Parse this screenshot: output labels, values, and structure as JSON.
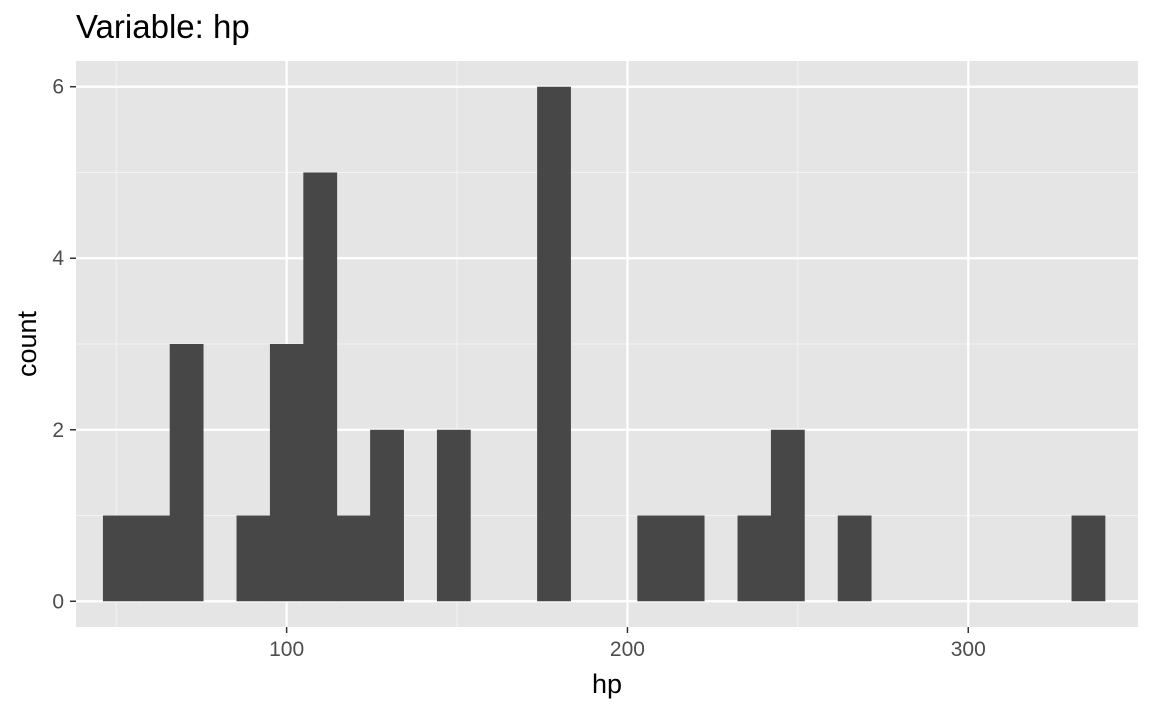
{
  "chart_data": {
    "type": "bar",
    "title": "Variable: hp",
    "xlabel": "hp",
    "ylabel": "count",
    "xlim": [
      38.2,
      349.8
    ],
    "ylim": [
      -0.3,
      6.3
    ],
    "x_ticks": [
      100,
      200,
      300
    ],
    "y_ticks": [
      0,
      2,
      4,
      6
    ],
    "bin_width": 9.8,
    "bins": [
      {
        "x_start": 46.1,
        "x_end": 55.9,
        "count": 1
      },
      {
        "x_start": 55.9,
        "x_end": 65.7,
        "count": 1
      },
      {
        "x_start": 65.7,
        "x_end": 75.5,
        "count": 3
      },
      {
        "x_start": 75.5,
        "x_end": 85.3,
        "count": 0
      },
      {
        "x_start": 85.3,
        "x_end": 95.1,
        "count": 1
      },
      {
        "x_start": 95.1,
        "x_end": 104.9,
        "count": 3
      },
      {
        "x_start": 104.9,
        "x_end": 114.7,
        "count": 5
      },
      {
        "x_start": 114.7,
        "x_end": 124.5,
        "count": 1
      },
      {
        "x_start": 124.5,
        "x_end": 134.3,
        "count": 2
      },
      {
        "x_start": 134.3,
        "x_end": 144.1,
        "count": 0
      },
      {
        "x_start": 144.1,
        "x_end": 153.9,
        "count": 2
      },
      {
        "x_start": 153.9,
        "x_end": 163.7,
        "count": 0
      },
      {
        "x_start": 163.7,
        "x_end": 173.5,
        "count": 0
      },
      {
        "x_start": 173.5,
        "x_end": 183.3,
        "count": 6
      },
      {
        "x_start": 183.3,
        "x_end": 193.1,
        "count": 0
      },
      {
        "x_start": 193.1,
        "x_end": 202.9,
        "count": 0
      },
      {
        "x_start": 202.9,
        "x_end": 212.7,
        "count": 1
      },
      {
        "x_start": 212.7,
        "x_end": 222.5,
        "count": 1
      },
      {
        "x_start": 222.5,
        "x_end": 232.3,
        "count": 0
      },
      {
        "x_start": 232.3,
        "x_end": 242.1,
        "count": 1
      },
      {
        "x_start": 242.1,
        "x_end": 251.9,
        "count": 2
      },
      {
        "x_start": 251.9,
        "x_end": 261.7,
        "count": 0
      },
      {
        "x_start": 261.7,
        "x_end": 271.5,
        "count": 1
      },
      {
        "x_start": 271.5,
        "x_end": 281.3,
        "count": 0
      },
      {
        "x_start": 281.3,
        "x_end": 291.1,
        "count": 0
      },
      {
        "x_start": 291.1,
        "x_end": 300.9,
        "count": 0
      },
      {
        "x_start": 300.9,
        "x_end": 310.7,
        "count": 0
      },
      {
        "x_start": 310.7,
        "x_end": 320.5,
        "count": 0
      },
      {
        "x_start": 320.5,
        "x_end": 330.3,
        "count": 0
      },
      {
        "x_start": 330.3,
        "x_end": 340.1,
        "count": 1
      }
    ],
    "grid": true,
    "colors": {
      "panel_background": "#e5e5e5",
      "grid_major": "#ffffff",
      "grid_minor": "#f2f2f2",
      "bar_fill": "#474747",
      "tick_text": "#4d4d4d",
      "tick_mark": "#333333"
    }
  }
}
